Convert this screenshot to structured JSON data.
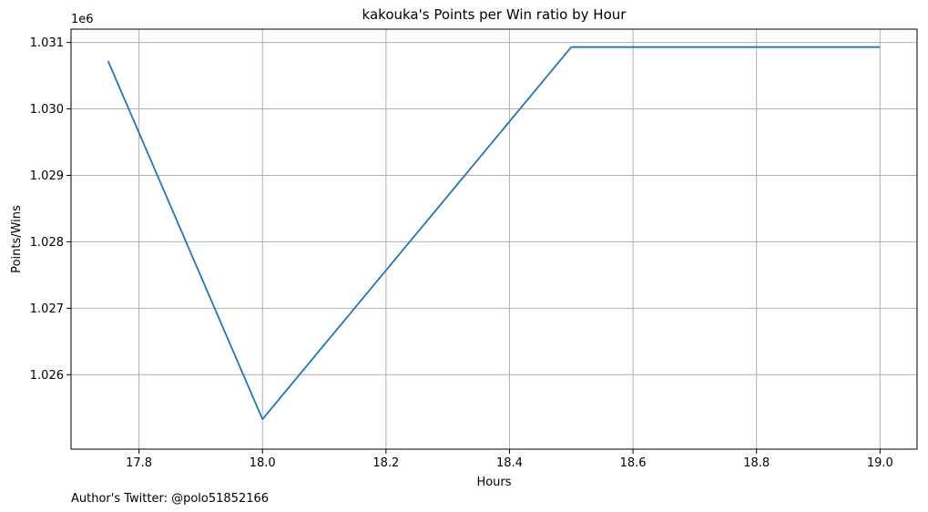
{
  "chart_data": {
    "type": "line",
    "title": "kakouka's Points per Win ratio by Hour",
    "xlabel": "Hours",
    "ylabel": "Points/Wins",
    "y_offset_label": "1e6",
    "footer": "Author's Twitter: @polo51852166",
    "xlim": [
      17.69,
      19.06
    ],
    "ylim": [
      1.02488,
      1.0312
    ],
    "x_ticks": [
      17.8,
      18.0,
      18.2,
      18.4,
      18.6,
      18.8,
      19.0
    ],
    "x_tick_labels": [
      "17.8",
      "18.0",
      "18.2",
      "18.4",
      "18.6",
      "18.8",
      "19.0"
    ],
    "y_ticks": [
      1.026,
      1.027,
      1.028,
      1.029,
      1.03,
      1.031
    ],
    "y_tick_labels": [
      "1.026",
      "1.027",
      "1.028",
      "1.029",
      "1.030",
      "1.031"
    ],
    "grid": true,
    "line_color": "#1f77b4",
    "grid_color": "#b0b0b0",
    "series": [
      {
        "x": [
          17.75,
          18.0,
          18.5,
          19.0
        ],
        "y": [
          1.03072,
          1.02533,
          1.03093,
          1.03093
        ]
      }
    ]
  }
}
